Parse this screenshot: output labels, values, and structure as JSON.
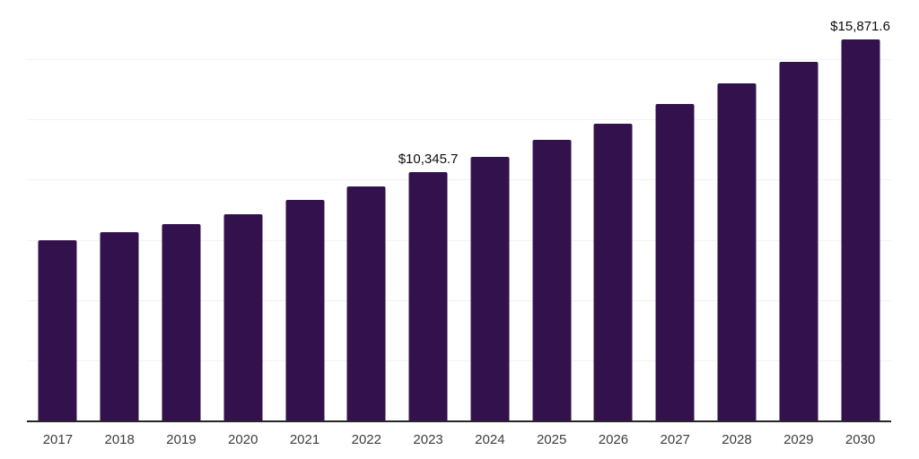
{
  "chart": {
    "background_color": "#ffffff",
    "bar_color": "#33114d",
    "grid_color": "#f2f2f2",
    "axis_color": "#262626",
    "tick_label_color": "#3d3d3d",
    "data_label_color": "#0d0d0d"
  },
  "chart_data": {
    "type": "bar",
    "title": "",
    "xlabel": "",
    "ylabel": "",
    "categories": [
      "2017",
      "2018",
      "2019",
      "2020",
      "2021",
      "2022",
      "2023",
      "2024",
      "2025",
      "2026",
      "2027",
      "2028",
      "2029",
      "2030"
    ],
    "values": [
      7530,
      7870,
      8210,
      8620,
      9180,
      9740,
      10345.7,
      10970,
      11680,
      12380,
      13170,
      14030,
      14920,
      15871.6
    ],
    "data_labels": {
      "2023": "$10,345.7",
      "2030": "$15,871.6"
    },
    "ylim": [
      0,
      17500
    ],
    "grid_interval": 2500,
    "grid": true,
    "legend_position": "none",
    "y_axis_ticks_visible": false
  }
}
